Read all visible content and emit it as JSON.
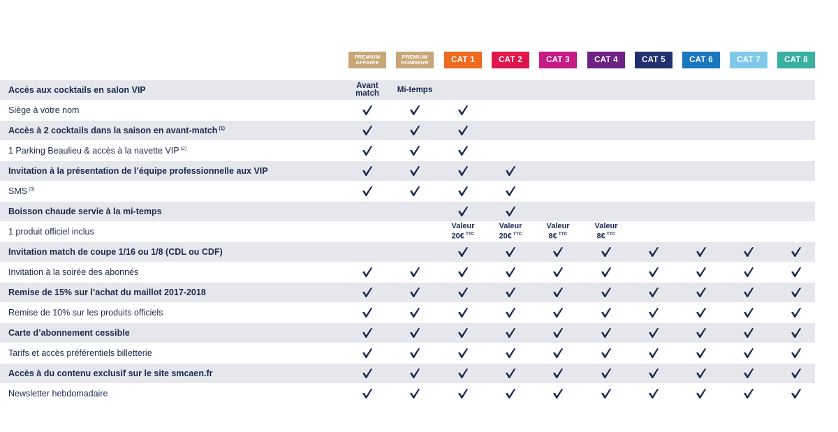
{
  "columns": [
    {
      "label": "PREMIUM AFFAIRE",
      "color": "#c9a677"
    },
    {
      "label": "PREMIUM HONNEUR",
      "color": "#c9a677"
    },
    {
      "label": "CAT 1",
      "color": "#ee6a1f"
    },
    {
      "label": "CAT 2",
      "color": "#e1164c"
    },
    {
      "label": "CAT 3",
      "color": "#c41b85"
    },
    {
      "label": "CAT 4",
      "color": "#6e2284"
    },
    {
      "label": "CAT 5",
      "color": "#222f6e"
    },
    {
      "label": "CAT 6",
      "color": "#1a77be"
    },
    {
      "label": "CAT 7",
      "color": "#7fc8ea"
    },
    {
      "label": "CAT 8",
      "color": "#3ab0a1"
    }
  ],
  "check_color": "#1c2a4f",
  "rows": [
    {
      "label": "Accès aux cocktails en salon VIP",
      "sup": "",
      "cells": [
        {
          "text": "Avant match"
        },
        {
          "text": "Mi-temps"
        },
        null,
        null,
        null,
        null,
        null,
        null,
        null,
        null
      ]
    },
    {
      "label": "Siège à votre nom",
      "sup": "",
      "cells": [
        true,
        true,
        true,
        null,
        null,
        null,
        null,
        null,
        null,
        null
      ]
    },
    {
      "label": "Accès à 2 cocktails dans la saison en avant-match",
      "sup": "(1)",
      "cells": [
        true,
        true,
        true,
        null,
        null,
        null,
        null,
        null,
        null,
        null
      ]
    },
    {
      "label": "1 Parking Beaulieu & accès à la navette VIP",
      "sup": "(2)",
      "cells": [
        true,
        true,
        true,
        null,
        null,
        null,
        null,
        null,
        null,
        null
      ]
    },
    {
      "label": "Invitation à la présentation de l’équipe professionnelle aux VIP",
      "sup": "",
      "cells": [
        true,
        true,
        true,
        true,
        null,
        null,
        null,
        null,
        null,
        null
      ]
    },
    {
      "label": "SMS",
      "sup": "(3)",
      "cells": [
        true,
        true,
        true,
        true,
        null,
        null,
        null,
        null,
        null,
        null
      ]
    },
    {
      "label": "Boisson chaude servie à la mi-temps",
      "sup": "",
      "cells": [
        null,
        null,
        true,
        true,
        null,
        null,
        null,
        null,
        null,
        null
      ]
    },
    {
      "label": "1 produit officiel inclus",
      "sup": "",
      "cells": [
        null,
        null,
        {
          "line1": "Valeur",
          "line2": "20€",
          "ttc": "TTC"
        },
        {
          "line1": "Valeur",
          "line2": "20€",
          "ttc": "TTC"
        },
        {
          "line1": "Valeur",
          "line2": "8€",
          "ttc": "TTC"
        },
        {
          "line1": "Valeur",
          "line2": "8€",
          "ttc": "TTC"
        },
        null,
        null,
        null,
        null
      ]
    },
    {
      "label": "Invitation match de coupe 1/16 ou 1/8 (CDL ou CDF)",
      "sup": "",
      "cells": [
        null,
        null,
        true,
        true,
        true,
        true,
        true,
        true,
        true,
        true
      ]
    },
    {
      "label": "Invitation à la soirée des abonnés",
      "sup": "",
      "cells": [
        true,
        true,
        true,
        true,
        true,
        true,
        true,
        true,
        true,
        true
      ]
    },
    {
      "label": "Remise de 15% sur l’achat du maillot 2017-2018",
      "sup": "",
      "cells": [
        true,
        true,
        true,
        true,
        true,
        true,
        true,
        true,
        true,
        true
      ]
    },
    {
      "label": "Remise de 10% sur les produits officiels",
      "sup": "",
      "cells": [
        true,
        true,
        true,
        true,
        true,
        true,
        true,
        true,
        true,
        true
      ]
    },
    {
      "label": "Carte d’abonnement cessible",
      "sup": "",
      "cells": [
        true,
        true,
        true,
        true,
        true,
        true,
        true,
        true,
        true,
        true
      ]
    },
    {
      "label": "Tarifs et accès préférentiels billetterie",
      "sup": "",
      "cells": [
        true,
        true,
        true,
        true,
        true,
        true,
        true,
        true,
        true,
        true
      ]
    },
    {
      "label": "Accès à du contenu exclusif sur le site smcaen.fr",
      "sup": "",
      "cells": [
        true,
        true,
        true,
        true,
        true,
        true,
        true,
        true,
        true,
        true
      ]
    },
    {
      "label": "Newsletter hebdomadaire",
      "sup": "",
      "cells": [
        true,
        true,
        true,
        true,
        true,
        true,
        true,
        true,
        true,
        true
      ]
    }
  ]
}
